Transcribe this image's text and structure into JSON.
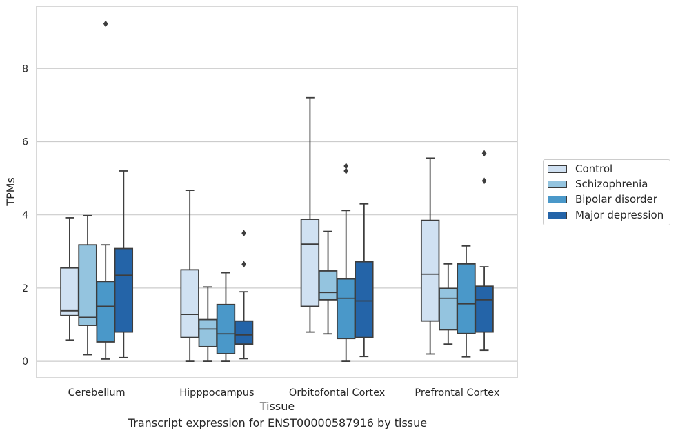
{
  "chart_data": {
    "type": "box",
    "xlabel": "Tissue",
    "ylabel": "TPMs",
    "caption": "Transcript expression for ENST00000587916 by tissue",
    "ylim": [
      -0.45,
      9.7
    ],
    "yticks": [
      0,
      2,
      4,
      6,
      8
    ],
    "grid": true,
    "legend_position": "right",
    "categories": [
      "Cerebellum",
      "Hipppocampus",
      "Orbitofontal Cortex",
      "Prefrontal Cortex"
    ],
    "series": [
      {
        "name": "Control",
        "color": "#d0e1f2",
        "boxes": [
          {
            "min": 0.58,
            "q1": 1.25,
            "median": 1.38,
            "q3": 2.55,
            "max": 3.92,
            "outliers": []
          },
          {
            "min": 0.0,
            "q1": 0.65,
            "median": 1.28,
            "q3": 2.5,
            "max": 4.67,
            "outliers": []
          },
          {
            "min": 0.8,
            "q1": 1.5,
            "median": 3.2,
            "q3": 3.88,
            "max": 7.2,
            "outliers": []
          },
          {
            "min": 0.2,
            "q1": 1.1,
            "median": 2.38,
            "q3": 3.85,
            "max": 5.55,
            "outliers": []
          }
        ]
      },
      {
        "name": "Schizophrenia",
        "color": "#94c4df",
        "boxes": [
          {
            "min": 0.18,
            "q1": 0.98,
            "median": 1.2,
            "q3": 3.18,
            "max": 3.98,
            "outliers": []
          },
          {
            "min": 0.0,
            "q1": 0.4,
            "median": 0.88,
            "q3": 1.14,
            "max": 2.03,
            "outliers": []
          },
          {
            "min": 0.75,
            "q1": 1.68,
            "median": 1.88,
            "q3": 2.47,
            "max": 3.55,
            "outliers": []
          },
          {
            "min": 0.47,
            "q1": 0.86,
            "median": 1.72,
            "q3": 1.99,
            "max": 2.66,
            "outliers": []
          }
        ]
      },
      {
        "name": "Bipolar disorder",
        "color": "#4a98c9",
        "boxes": [
          {
            "min": 0.06,
            "q1": 0.53,
            "median": 1.5,
            "q3": 2.18,
            "max": 3.18,
            "outliers": [
              9.22
            ]
          },
          {
            "min": 0.0,
            "q1": 0.21,
            "median": 0.75,
            "q3": 1.55,
            "max": 2.42,
            "outliers": []
          },
          {
            "min": 0.0,
            "q1": 0.62,
            "median": 1.72,
            "q3": 2.25,
            "max": 4.12,
            "outliers": [
              5.2,
              5.33
            ]
          },
          {
            "min": 0.12,
            "q1": 0.76,
            "median": 1.57,
            "q3": 2.66,
            "max": 3.15,
            "outliers": []
          }
        ]
      },
      {
        "name": "Major depression",
        "color": "#2464a8",
        "boxes": [
          {
            "min": 0.1,
            "q1": 0.8,
            "median": 2.35,
            "q3": 3.08,
            "max": 5.2,
            "outliers": []
          },
          {
            "min": 0.07,
            "q1": 0.47,
            "median": 0.72,
            "q3": 1.1,
            "max": 1.9,
            "outliers": [
              2.65,
              3.5
            ]
          },
          {
            "min": 0.13,
            "q1": 0.65,
            "median": 1.65,
            "q3": 2.72,
            "max": 4.3,
            "outliers": []
          },
          {
            "min": 0.3,
            "q1": 0.8,
            "median": 1.68,
            "q3": 2.05,
            "max": 2.58,
            "outliers": [
              4.93,
              5.68
            ]
          }
        ]
      }
    ]
  }
}
